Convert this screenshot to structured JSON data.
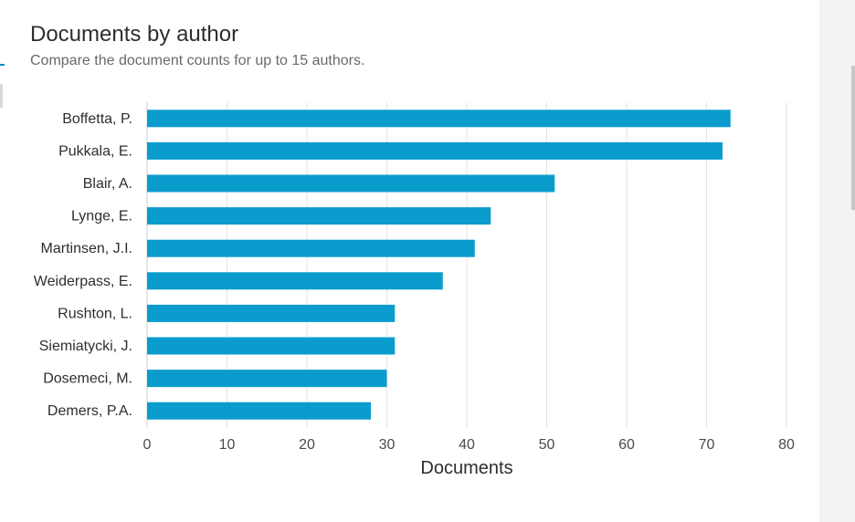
{
  "header": {
    "title": "Documents by author",
    "subtitle": "Compare the document counts for up to 15 authors."
  },
  "chart_data": {
    "type": "bar",
    "orientation": "horizontal",
    "categories": [
      "Boffetta, P.",
      "Pukkala, E.",
      "Blair, A.",
      "Lynge, E.",
      "Martinsen, J.I.",
      "Weiderpass, E.",
      "Rushton, L.",
      "Siemiatycki, J.",
      "Dosemeci, M.",
      "Demers, P.A."
    ],
    "values": [
      73,
      72,
      51,
      43,
      41,
      37,
      31,
      31,
      30,
      28
    ],
    "xlabel": "Documents",
    "ylabel": "",
    "xlim": [
      0,
      80
    ],
    "xticks": [
      0,
      10,
      20,
      30,
      40,
      50,
      60,
      70,
      80
    ],
    "grid": true,
    "bar_color": "#0a9ccd"
  }
}
